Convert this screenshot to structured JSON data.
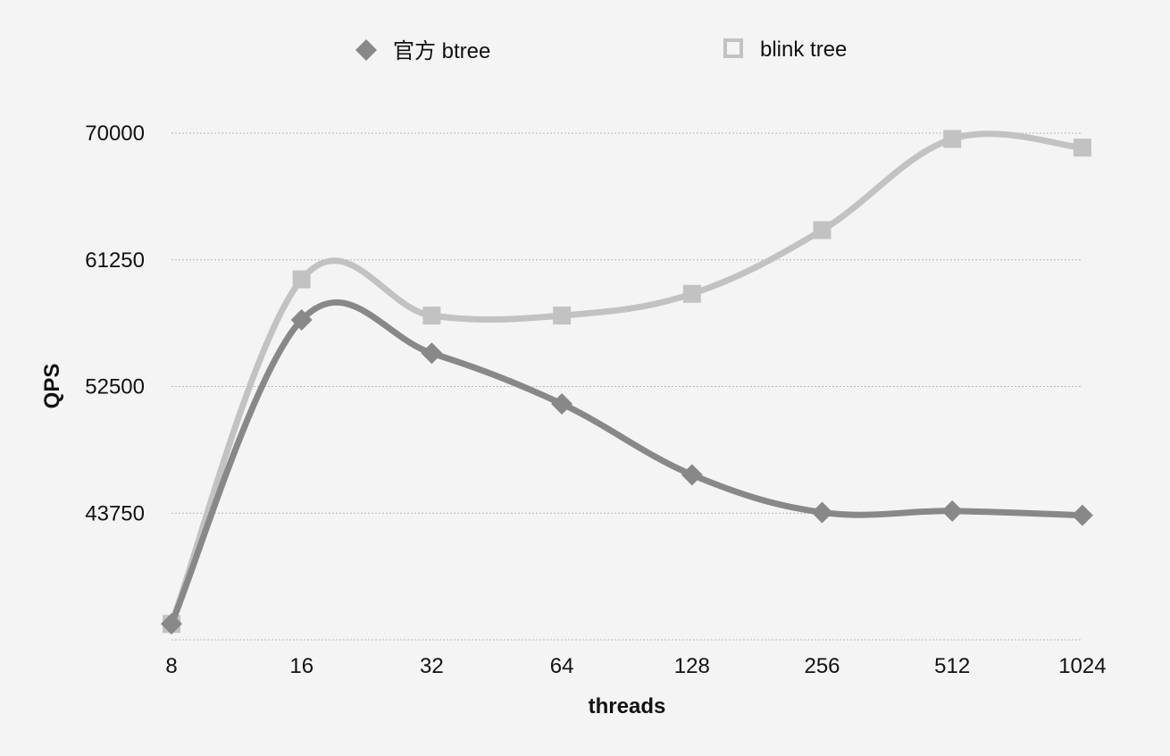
{
  "chart_data": {
    "type": "line",
    "categories": [
      "8",
      "16",
      "32",
      "64",
      "128",
      "256",
      "512",
      "1024"
    ],
    "series": [
      {
        "name": "官方 btree",
        "values": [
          36100,
          57100,
          54800,
          51300,
          46400,
          43800,
          43900,
          43600
        ],
        "color": "#888888",
        "marker": "diamond"
      },
      {
        "name": "blink tree",
        "values": [
          36100,
          59900,
          57400,
          57400,
          58900,
          63300,
          69600,
          69000
        ],
        "color": "#c2c2c2",
        "marker": "square-hollow"
      }
    ],
    "xlabel": "threads",
    "ylabel": "QPS",
    "yticks": [
      35000,
      43750,
      52500,
      61250,
      70000
    ],
    "ytick_labels": [
      "",
      "43750",
      "52500",
      "61250",
      "70000"
    ],
    "ylim": [
      35000,
      70000
    ],
    "grid": true,
    "legend_position": "top"
  }
}
